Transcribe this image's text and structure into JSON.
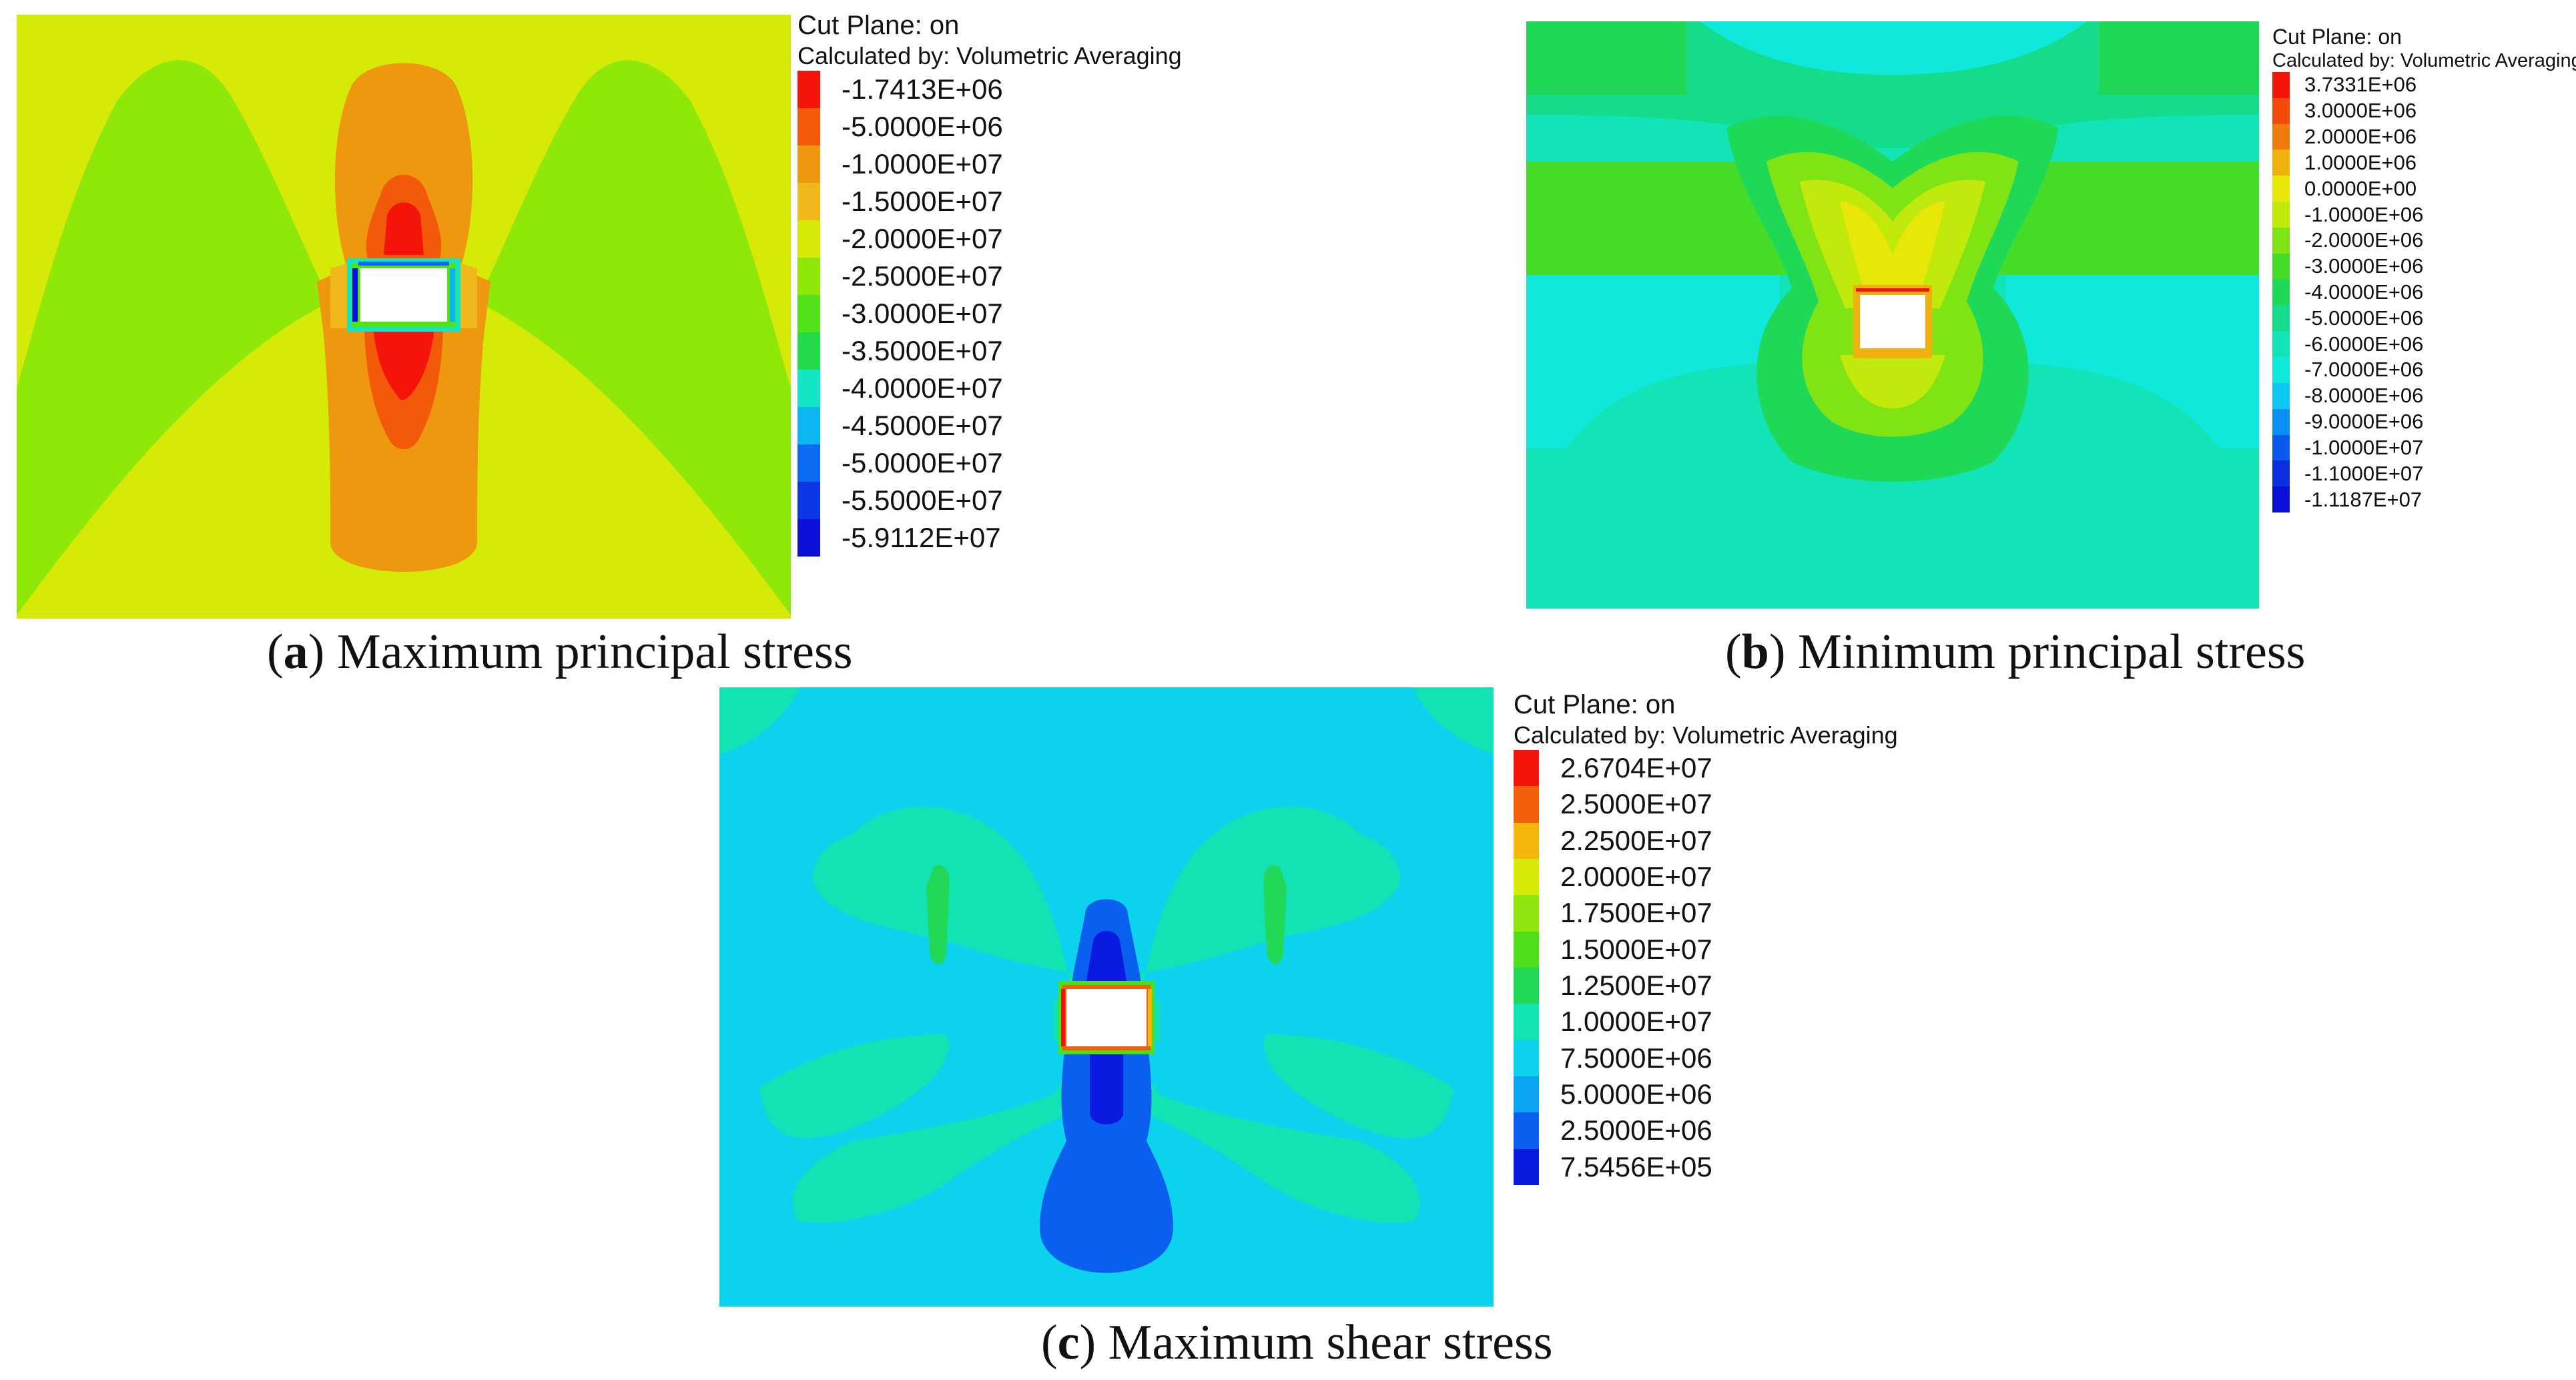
{
  "panels": {
    "a": {
      "header_line1": "Cut Plane: on",
      "header_line2": "Calculated by: Volumetric Averaging",
      "caption_letter": "a",
      "caption_text": "Maximum principal stress",
      "legend": [
        {
          "label": "-1.7413E+06",
          "color": "#f5140a"
        },
        {
          "label": "-5.0000E+06",
          "color": "#f25a0a"
        },
        {
          "label": "-1.0000E+07",
          "color": "#ee9810"
        },
        {
          "label": "-1.5000E+07",
          "color": "#f0b81a"
        },
        {
          "label": "-2.0000E+07",
          "color": "#d6ea08"
        },
        {
          "label": "-2.5000E+07",
          "color": "#8fe80a"
        },
        {
          "label": "-3.0000E+07",
          "color": "#52e21a"
        },
        {
          "label": "-3.5000E+07",
          "color": "#24da4a"
        },
        {
          "label": "-4.0000E+07",
          "color": "#12e6c4"
        },
        {
          "label": "-4.5000E+07",
          "color": "#0cb6f0"
        },
        {
          "label": "-5.0000E+07",
          "color": "#0a6af2"
        },
        {
          "label": "-5.5000E+07",
          "color": "#0a36e4"
        },
        {
          "label": "-5.9112E+07",
          "color": "#0a10d8"
        }
      ]
    },
    "b": {
      "header_line1": "Cut Plane: on",
      "header_line2": "Calculated by: Volumetric Averaging",
      "caption_letter": "b",
      "caption_text": "Minimum principal stress",
      "legend": [
        {
          "label": "3.7331E+06",
          "color": "#f5140a"
        },
        {
          "label": "3.0000E+06",
          "color": "#f24a0a"
        },
        {
          "label": "2.0000E+06",
          "color": "#f07a0c"
        },
        {
          "label": "1.0000E+06",
          "color": "#f0b010"
        },
        {
          "label": "0.0000E+00",
          "color": "#e8e808"
        },
        {
          "label": "-1.0000E+06",
          "color": "#c0ea0c"
        },
        {
          "label": "-2.0000E+06",
          "color": "#80e414"
        },
        {
          "label": "-3.0000E+06",
          "color": "#44dc28"
        },
        {
          "label": "-4.0000E+06",
          "color": "#20d858"
        },
        {
          "label": "-5.0000E+06",
          "color": "#14dc8a"
        },
        {
          "label": "-6.0000E+06",
          "color": "#12e4b8"
        },
        {
          "label": "-7.0000E+06",
          "color": "#10e8dc"
        },
        {
          "label": "-8.0000E+06",
          "color": "#0cc8f2"
        },
        {
          "label": "-9.0000E+06",
          "color": "#0a90f2"
        },
        {
          "label": "-1.0000E+07",
          "color": "#0a58ee"
        },
        {
          "label": "-1.1000E+07",
          "color": "#0a2ee0"
        },
        {
          "label": "-1.1187E+07",
          "color": "#0a0ed6"
        }
      ]
    },
    "c": {
      "header_line1": "Cut Plane: on",
      "header_line2": "Calculated by: Volumetric Averaging",
      "caption_letter": "c",
      "caption_text": "Maximum shear stress",
      "legend": [
        {
          "label": "2.6704E+07",
          "color": "#f5140a"
        },
        {
          "label": "2.5000E+07",
          "color": "#f2600a"
        },
        {
          "label": "2.2500E+07",
          "color": "#f4b80c"
        },
        {
          "label": "2.0000E+07",
          "color": "#d8ea08"
        },
        {
          "label": "1.7500E+07",
          "color": "#90e60e"
        },
        {
          "label": "1.5000E+07",
          "color": "#4ede1c"
        },
        {
          "label": "1.2500E+07",
          "color": "#22d858"
        },
        {
          "label": "1.0000E+07",
          "color": "#12e2b4"
        },
        {
          "label": "7.5000E+06",
          "color": "#0cd2ee"
        },
        {
          "label": "5.0000E+06",
          "color": "#0aa4f2"
        },
        {
          "label": "2.5000E+06",
          "color": "#0a60ee"
        },
        {
          "label": "7.5456E+05",
          "color": "#0a1ae0"
        }
      ]
    }
  }
}
